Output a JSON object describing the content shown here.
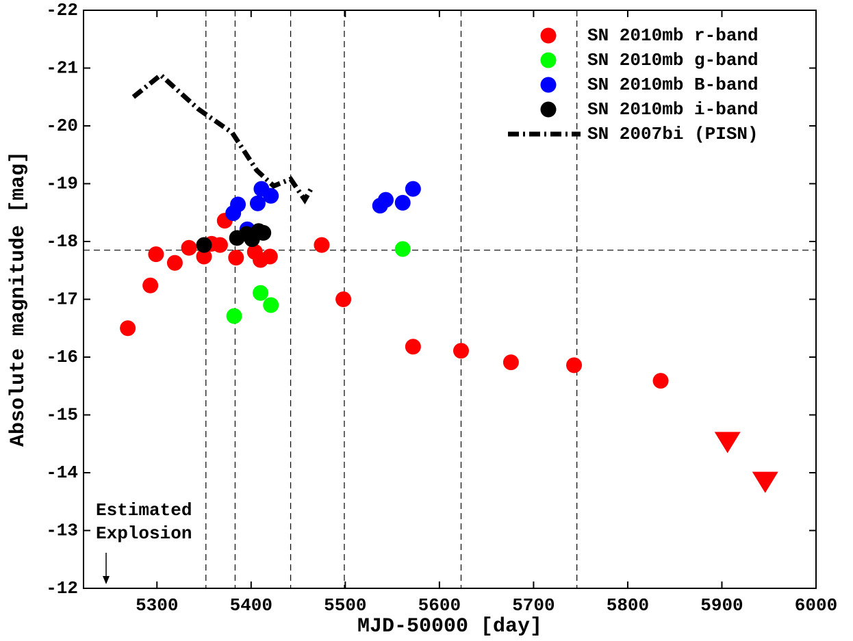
{
  "chart_data": {
    "type": "scatter",
    "xlabel": "MJD-50000 [day]",
    "ylabel": "Absolute magnitude [mag]",
    "xlim": [
      5222,
      6000
    ],
    "xticks": [
      5300,
      5400,
      5500,
      5600,
      5700,
      5800,
      5900,
      6000
    ],
    "ylim": [
      -12,
      -22
    ],
    "yticks": [
      -22,
      -21,
      -20,
      -19,
      -18,
      -17,
      -16,
      -15,
      -14,
      -13,
      -12
    ],
    "legend": "upper right",
    "vlines": [
      5352,
      5383,
      5442,
      5499,
      5623,
      5746
    ],
    "hlines": [
      -17.85
    ],
    "annotation": {
      "text": [
        "Estimated",
        "Explosion"
      ],
      "x": 5246
    },
    "series": [
      {
        "name": "SN 2010mb r-band",
        "color": "#ff0000",
        "style": "marker",
        "x": [
          5269,
          5293,
          5299,
          5319,
          5334,
          5350,
          5358,
          5367,
          5372,
          5384,
          5404,
          5410,
          5420,
          5475,
          5498,
          5572,
          5623,
          5676,
          5743,
          5835,
          5906,
          5946
        ],
        "values": [
          -16.5,
          -17.24,
          -17.78,
          -17.63,
          -17.89,
          -17.74,
          -17.96,
          -17.94,
          -18.36,
          -17.72,
          -17.82,
          -17.68,
          -17.74,
          -17.94,
          -17.0,
          -16.18,
          -16.11,
          -15.91,
          -15.86,
          -15.59,
          -14.54,
          -13.85
        ],
        "markers": [
          "o",
          "o",
          "o",
          "o",
          "o",
          "o",
          "o",
          "o",
          "o",
          "o",
          "o",
          "o",
          "o",
          "o",
          "o",
          "o",
          "o",
          "o",
          "o",
          "o",
          "v",
          "v"
        ]
      },
      {
        "name": "SN 2010mb g-band",
        "color": "#00ff00",
        "style": "marker",
        "x": [
          5382,
          5410,
          5421,
          5561
        ],
        "values": [
          -16.71,
          -17.11,
          -16.9,
          -17.87
        ]
      },
      {
        "name": "SN 2010mb B-band",
        "color": "#0000ff",
        "style": "marker",
        "x": [
          5381,
          5386,
          5396,
          5407,
          5411,
          5421,
          5537,
          5543,
          5561,
          5572
        ],
        "values": [
          -18.49,
          -18.64,
          -18.21,
          -18.66,
          -18.91,
          -18.79,
          -18.62,
          -18.72,
          -18.67,
          -18.91
        ]
      },
      {
        "name": "SN 2010mb i-band",
        "color": "#000000",
        "style": "marker",
        "x": [
          5350,
          5385,
          5395,
          5401,
          5408,
          5413
        ],
        "values": [
          -17.94,
          -18.06,
          -18.13,
          -18.04,
          -18.18,
          -18.15
        ]
      },
      {
        "name": "SN 2007bi (PISN)",
        "color": "#000000",
        "style": "dashdot",
        "x": [
          5275,
          5304,
          5344,
          5380,
          5406,
          5424,
          5442,
          5457,
          5464
        ],
        "values": [
          -20.5,
          -20.88,
          -20.29,
          -19.88,
          -19.23,
          -18.96,
          -19.08,
          -18.72,
          -18.92
        ]
      }
    ]
  }
}
